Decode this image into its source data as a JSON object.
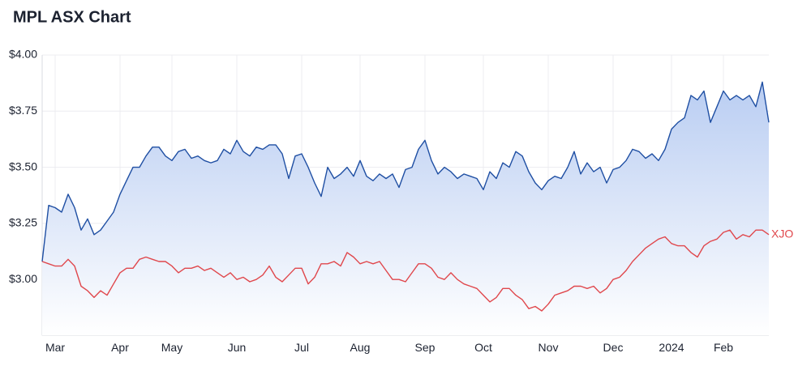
{
  "chart_data": {
    "type": "line",
    "title": "MPL ASX Chart",
    "categories": [
      null,
      null,
      "Mar",
      null,
      null,
      null,
      null,
      null,
      null,
      null,
      null,
      null,
      "Apr",
      null,
      null,
      null,
      null,
      null,
      null,
      null,
      "May",
      null,
      null,
      null,
      null,
      null,
      null,
      null,
      null,
      null,
      "Jun",
      null,
      null,
      null,
      null,
      null,
      null,
      null,
      null,
      null,
      "Jul",
      null,
      null,
      null,
      null,
      null,
      null,
      null,
      null,
      "Aug",
      null,
      null,
      null,
      null,
      null,
      null,
      null,
      null,
      null,
      "Sep",
      null,
      null,
      null,
      null,
      null,
      null,
      null,
      null,
      "Oct",
      null,
      null,
      null,
      null,
      null,
      null,
      null,
      null,
      null,
      "Nov",
      null,
      null,
      null,
      null,
      null,
      null,
      null,
      null,
      null,
      "Dec",
      null,
      null,
      null,
      null,
      null,
      null,
      null,
      null,
      "2024",
      null,
      null,
      null,
      null,
      null,
      null,
      null,
      "Feb",
      null,
      null,
      null,
      null,
      null,
      null,
      null
    ],
    "series": [
      {
        "color": "#1f4fa3",
        "area": true,
        "values": [
          3.08,
          3.33,
          3.32,
          3.3,
          3.38,
          3.32,
          3.22,
          3.27,
          3.2,
          3.22,
          3.26,
          3.3,
          3.38,
          3.44,
          3.5,
          3.5,
          3.55,
          3.59,
          3.59,
          3.55,
          3.53,
          3.57,
          3.58,
          3.54,
          3.55,
          3.53,
          3.52,
          3.53,
          3.58,
          3.56,
          3.62,
          3.57,
          3.55,
          3.59,
          3.58,
          3.6,
          3.6,
          3.56,
          3.45,
          3.55,
          3.56,
          3.5,
          3.43,
          3.37,
          3.5,
          3.45,
          3.47,
          3.5,
          3.46,
          3.53,
          3.46,
          3.44,
          3.47,
          3.45,
          3.47,
          3.41,
          3.49,
          3.5,
          3.58,
          3.62,
          3.53,
          3.47,
          3.5,
          3.48,
          3.45,
          3.47,
          3.46,
          3.45,
          3.4,
          3.48,
          3.45,
          3.52,
          3.5,
          3.57,
          3.55,
          3.48,
          3.43,
          3.4,
          3.44,
          3.46,
          3.45,
          3.5,
          3.57,
          3.47,
          3.52,
          3.48,
          3.5,
          3.43,
          3.49,
          3.5,
          3.53,
          3.58,
          3.57,
          3.54,
          3.56,
          3.53,
          3.58,
          3.67,
          3.7,
          3.72,
          3.82,
          3.8,
          3.84,
          3.7,
          3.77,
          3.84,
          3.8,
          3.82,
          3.8,
          3.82,
          3.77,
          3.88,
          3.7
        ]
      },
      {
        "name": "XJO",
        "color": "#e0474c",
        "area": false,
        "values": [
          3.08,
          3.07,
          3.06,
          3.06,
          3.09,
          3.06,
          2.97,
          2.95,
          2.92,
          2.95,
          2.93,
          2.98,
          3.03,
          3.05,
          3.05,
          3.09,
          3.1,
          3.09,
          3.08,
          3.08,
          3.06,
          3.03,
          3.05,
          3.05,
          3.06,
          3.04,
          3.05,
          3.03,
          3.01,
          3.03,
          3.0,
          3.01,
          2.99,
          3.0,
          3.02,
          3.06,
          3.01,
          2.99,
          3.02,
          3.05,
          3.05,
          2.98,
          3.01,
          3.07,
          3.07,
          3.08,
          3.06,
          3.12,
          3.1,
          3.07,
          3.08,
          3.07,
          3.08,
          3.04,
          3.0,
          3.0,
          2.99,
          3.03,
          3.07,
          3.07,
          3.05,
          3.01,
          3.0,
          3.03,
          3.0,
          2.98,
          2.97,
          2.96,
          2.93,
          2.9,
          2.92,
          2.96,
          2.96,
          2.93,
          2.91,
          2.87,
          2.88,
          2.86,
          2.89,
          2.93,
          2.94,
          2.95,
          2.97,
          2.97,
          2.96,
          2.97,
          2.94,
          2.96,
          3.0,
          3.01,
          3.04,
          3.08,
          3.11,
          3.14,
          3.16,
          3.18,
          3.19,
          3.16,
          3.15,
          3.15,
          3.12,
          3.1,
          3.15,
          3.17,
          3.18,
          3.21,
          3.22,
          3.18,
          3.2,
          3.19,
          3.22,
          3.22,
          3.2
        ]
      }
    ],
    "ylim": [
      2.75,
      4.0
    ],
    "yticks": [
      {
        "value": 3,
        "label": "$3.00"
      },
      {
        "value": 3.25,
        "label": "$3.25"
      },
      {
        "value": 3.5,
        "label": "$3.50"
      },
      {
        "value": 3.75,
        "label": "$3.75"
      },
      {
        "value": 4,
        "label": "$4.00"
      }
    ],
    "grid": true
  }
}
